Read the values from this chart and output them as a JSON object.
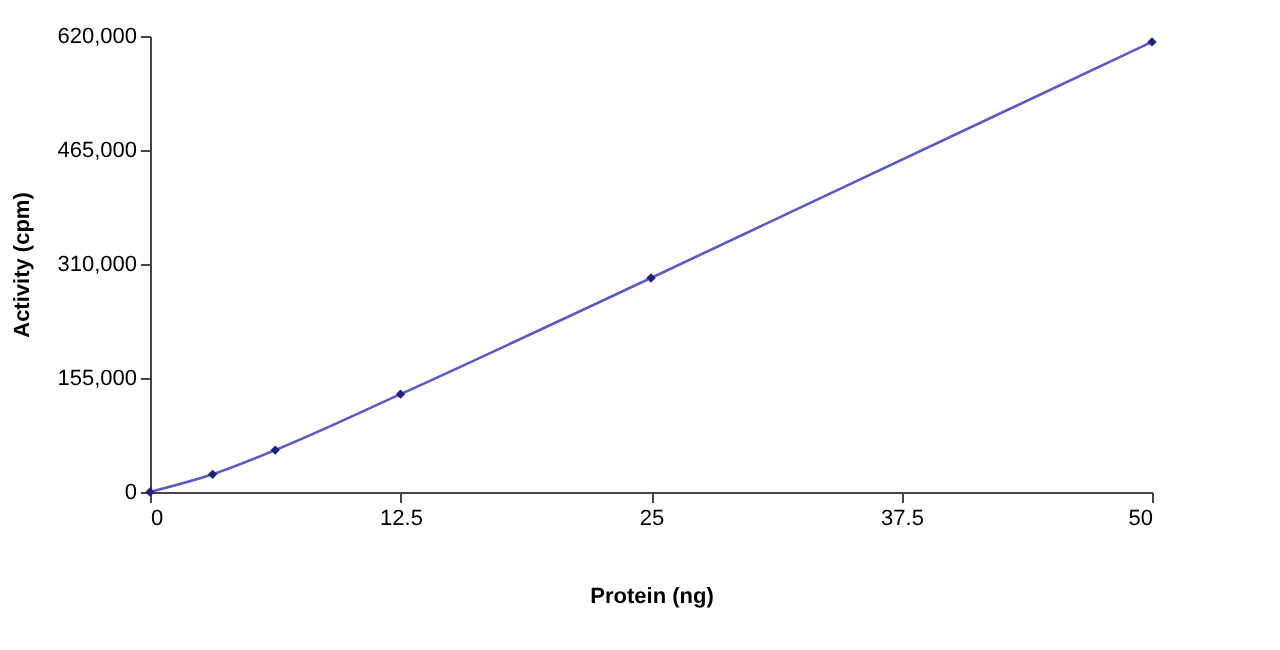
{
  "chart_data": {
    "type": "line",
    "xlabel": "Protein (ng)",
    "ylabel": "Activity (cpm)",
    "x": [
      0,
      3.125,
      6.25,
      12.5,
      25,
      50
    ],
    "series": [
      {
        "color": "#5a5ac0",
        "values": [
          0,
          24000,
          57000,
          133000,
          291000,
          612000
        ]
      }
    ],
    "xlim": [
      0,
      50
    ],
    "xticks": [
      0,
      12.5,
      25,
      37.5,
      50
    ],
    "ylim": [
      0,
      620000
    ],
    "yticks": [
      {
        "value": 0,
        "label": "0"
      },
      {
        "value": 155000,
        "label": "155,000"
      },
      {
        "value": 310000,
        "label": "310,000"
      },
      {
        "value": 465000,
        "label": "465,000"
      },
      {
        "value": 620000,
        "label": "620,000"
      }
    ],
    "grid": false,
    "marker": "diamond",
    "line_style": "solid"
  }
}
